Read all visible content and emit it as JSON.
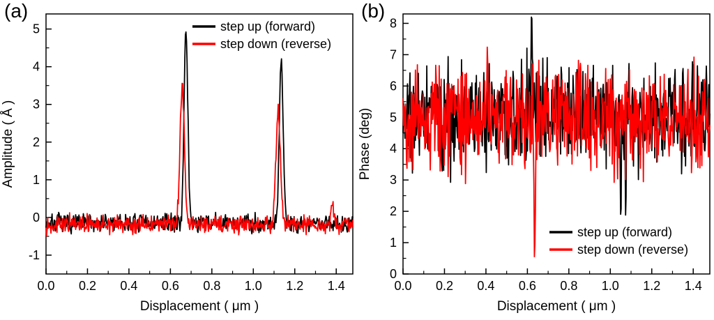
{
  "figure": {
    "background": "#ffffff"
  },
  "colors": {
    "series_black": "#000000",
    "series_red": "#ff0000",
    "axis": "#000000"
  },
  "chart_data": [
    {
      "panel_label": "(a)",
      "type": "line",
      "title": "",
      "xlabel": "Displacement ( μm )",
      "ylabel": "Amplitude ( Å )",
      "xlim": [
        0,
        1.48
      ],
      "ylim": [
        -1.5,
        5.4
      ],
      "xticks": [
        0.0,
        0.2,
        0.4,
        0.6,
        0.8,
        1.0,
        1.2,
        1.4
      ],
      "xtick_labels": [
        "0.0",
        "0.2",
        "0.4",
        "0.6",
        "0.8",
        "1.0",
        "1.2",
        "1.4"
      ],
      "yticks": [
        -1,
        0,
        1,
        2,
        3,
        4,
        5
      ],
      "ytick_labels": [
        "-1",
        "0",
        "1",
        "2",
        "3",
        "4",
        "5"
      ],
      "xminor_step": 0.1,
      "yminor_step": 0.5,
      "grid": false,
      "n_points": 560,
      "legend": {
        "position": "top-right",
        "entries": [
          {
            "label": "step up (forward)",
            "color": "#000000"
          },
          {
            "label": "step down (reverse)",
            "color": "#ff0000"
          }
        ]
      },
      "series": [
        {
          "name": "step up (forward)",
          "color": "#000000",
          "baseline": -0.15,
          "noise_sd": 0.12,
          "seed": 7,
          "peaks": [
            {
              "center": 0.675,
              "height": 5.0,
              "width": 0.013
            },
            {
              "center": 1.135,
              "height": 4.3,
              "width": 0.013
            }
          ]
        },
        {
          "name": "step down (reverse)",
          "color": "#ff0000",
          "baseline": -0.18,
          "noise_sd": 0.11,
          "seed": 13,
          "peaks": [
            {
              "center": 0.657,
              "height": 3.6,
              "width": 0.015
            },
            {
              "center": 1.12,
              "height": 3.05,
              "width": 0.015
            },
            {
              "center": 1.382,
              "height": 0.6,
              "width": 0.008
            }
          ]
        }
      ]
    },
    {
      "panel_label": "(b)",
      "type": "line",
      "title": "",
      "xlabel": "Displacement ( μm )",
      "ylabel": "Phase (deg)",
      "xlim": [
        0,
        1.48
      ],
      "ylim": [
        0,
        8.3
      ],
      "xticks": [
        0.0,
        0.2,
        0.4,
        0.6,
        0.8,
        1.0,
        1.2,
        1.4
      ],
      "xtick_labels": [
        "0.0",
        "0.2",
        "0.4",
        "0.6",
        "0.8",
        "1.0",
        "1.2",
        "1.4"
      ],
      "yticks": [
        0,
        1,
        2,
        3,
        4,
        5,
        6,
        7,
        8
      ],
      "ytick_labels": [
        "0",
        "1",
        "2",
        "3",
        "4",
        "5",
        "6",
        "7",
        "8"
      ],
      "xminor_step": 0.1,
      "yminor_step": 0.5,
      "grid": false,
      "n_points": 620,
      "legend": {
        "position": "bottom-right",
        "entries": [
          {
            "label": "step up (forward)",
            "color": "#000000"
          },
          {
            "label": "step down (reverse)",
            "color": "#ff0000"
          }
        ]
      },
      "series": [
        {
          "name": "step up (forward)",
          "color": "#000000",
          "baseline": 5.05,
          "noise_sd": 0.8,
          "seed": 21,
          "peaks": [
            {
              "center": 0.62,
              "height": 2.9,
              "width": 0.005
            },
            {
              "center": 1.05,
              "height": -3.0,
              "width": 0.004
            },
            {
              "center": 1.075,
              "height": -2.8,
              "width": 0.004
            }
          ]
        },
        {
          "name": "step down (reverse)",
          "color": "#ff0000",
          "baseline": 4.95,
          "noise_sd": 0.8,
          "seed": 42,
          "peaks": [
            {
              "center": 0.635,
              "height": -4.4,
              "width": 0.005
            }
          ]
        }
      ]
    }
  ]
}
